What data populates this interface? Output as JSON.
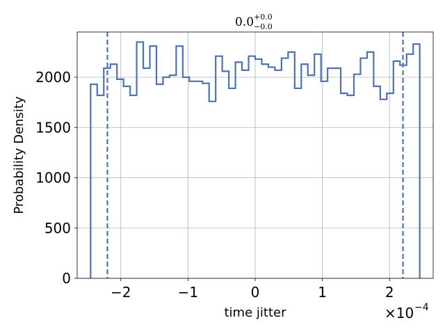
{
  "chart_data": {
    "type": "histogram",
    "title": {
      "value": "0.0",
      "sup": "+0.0",
      "sub": "−0.0"
    },
    "xlabel": "time jitter",
    "ylabel": "Probability Density",
    "x_offset": {
      "base": "×10",
      "exp": "−4"
    },
    "xlim": [
      -2.65,
      2.65
    ],
    "ylim": [
      0,
      2450
    ],
    "grid": true,
    "x_ticks": [
      {
        "value": -2,
        "label": "−2"
      },
      {
        "value": -1,
        "label": "−1"
      },
      {
        "value": 0,
        "label": "0"
      },
      {
        "value": 1,
        "label": "1"
      },
      {
        "value": 2,
        "label": "2"
      }
    ],
    "y_ticks": [
      {
        "value": 0,
        "label": "0"
      },
      {
        "value": 500,
        "label": "500"
      },
      {
        "value": 1000,
        "label": "1000"
      },
      {
        "value": 1500,
        "label": "1500"
      },
      {
        "value": 2000,
        "label": "2000"
      }
    ],
    "series_color": "#4c72b0",
    "bins": {
      "start": -2.45,
      "end": 2.45,
      "values": [
        1930,
        1820,
        2090,
        2130,
        1980,
        1910,
        1820,
        2350,
        2090,
        2310,
        1930,
        2000,
        2020,
        2310,
        2000,
        1960,
        1960,
        1940,
        1760,
        2210,
        2060,
        1890,
        2150,
        2070,
        2210,
        2180,
        2130,
        2100,
        2070,
        2190,
        2250,
        1890,
        2130,
        2020,
        2230,
        1960,
        2090,
        2090,
        1840,
        1820,
        2030,
        2190,
        2250,
        1910,
        1780,
        1840,
        2160,
        2120,
        2230,
        2330
      ]
    },
    "quantile_lines": [
      -2.2,
      2.2
    ]
  }
}
